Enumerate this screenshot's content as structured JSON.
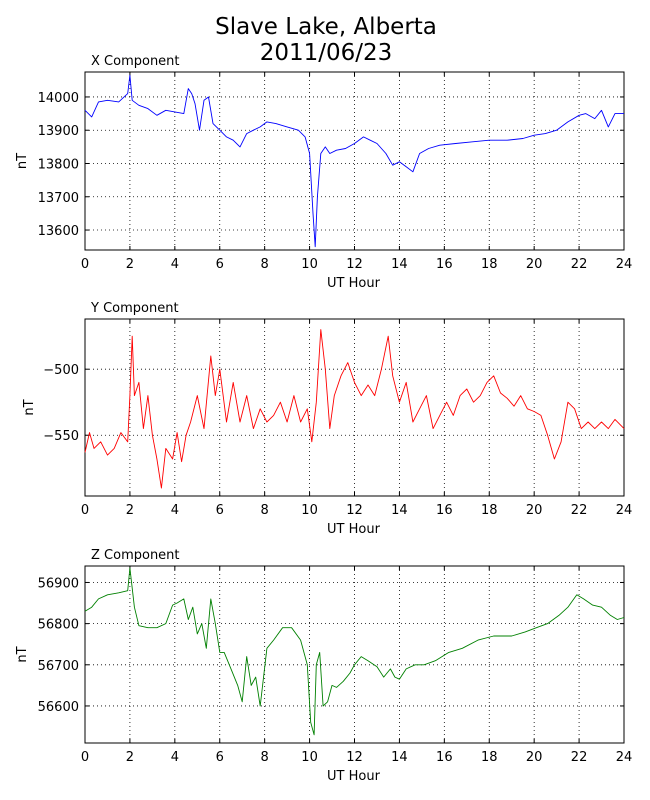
{
  "title_line1": "Slave Lake, Alberta",
  "title_line2": "2011/06/23",
  "chart_data": [
    {
      "type": "line",
      "subtitle": "X Component",
      "xlabel": "UT Hour",
      "ylabel": "nT",
      "color": "#0000ff",
      "xlim": [
        0,
        24
      ],
      "ylim": [
        13540,
        14075
      ],
      "xticks": [
        0,
        2,
        4,
        6,
        8,
        10,
        12,
        14,
        16,
        18,
        20,
        22,
        24
      ],
      "yticks": [
        13600,
        13700,
        13800,
        13900,
        14000
      ],
      "ytick_labels": [
        "13600",
        "13700",
        "13800",
        "13900",
        "14000"
      ],
      "grid": true,
      "series": [
        {
          "x": [
            0,
            0.3,
            0.6,
            1.0,
            1.5,
            1.9,
            2.0,
            2.1,
            2.4,
            2.8,
            3.2,
            3.6,
            4.0,
            4.4,
            4.6,
            4.75,
            4.9,
            5.1,
            5.3,
            5.5,
            5.7,
            6.0,
            6.3,
            6.6,
            6.9,
            7.2,
            7.5,
            7.8,
            8.1,
            8.5,
            9.0,
            9.5,
            9.8,
            10.0,
            10.15,
            10.25,
            10.35,
            10.5,
            10.7,
            10.9,
            11.2,
            11.6,
            12.0,
            12.4,
            12.7,
            13.0,
            13.4,
            13.7,
            14.0,
            14.3,
            14.6,
            14.9,
            15.3,
            15.8,
            16.5,
            17.2,
            18.0,
            18.8,
            19.5,
            20.0,
            20.5,
            21.0,
            21.5,
            22.0,
            22.3,
            22.7,
            23.0,
            23.3,
            23.6,
            24.0
          ],
          "y": [
            13960,
            13940,
            13985,
            13990,
            13985,
            14010,
            14065,
            13990,
            13975,
            13965,
            13945,
            13960,
            13955,
            13950,
            14025,
            14010,
            13980,
            13900,
            13990,
            14000,
            13920,
            13900,
            13880,
            13870,
            13850,
            13890,
            13900,
            13910,
            13925,
            13920,
            13910,
            13900,
            13880,
            13830,
            13650,
            13550,
            13700,
            13830,
            13850,
            13830,
            13840,
            13845,
            13860,
            13880,
            13870,
            13860,
            13830,
            13795,
            13805,
            13790,
            13775,
            13830,
            13845,
            13855,
            13860,
            13865,
            13870,
            13870,
            13875,
            13885,
            13890,
            13900,
            13925,
            13945,
            13950,
            13935,
            13960,
            13910,
            13950,
            13950
          ]
        }
      ]
    },
    {
      "type": "line",
      "subtitle": "Y Component",
      "xlabel": "UT Hour",
      "ylabel": "nT",
      "color": "#ff0000",
      "xlim": [
        0,
        24
      ],
      "ylim": [
        -596,
        -462
      ],
      "xticks": [
        0,
        2,
        4,
        6,
        8,
        10,
        12,
        14,
        16,
        18,
        20,
        22,
        24
      ],
      "yticks": [
        -550,
        -500
      ],
      "ytick_labels": [
        "−550",
        "−500"
      ],
      "grid": true,
      "series": [
        {
          "x": [
            0,
            0.2,
            0.4,
            0.7,
            1.0,
            1.3,
            1.6,
            1.9,
            2.0,
            2.1,
            2.2,
            2.4,
            2.6,
            2.8,
            3.0,
            3.2,
            3.4,
            3.6,
            3.9,
            4.1,
            4.3,
            4.5,
            4.7,
            5.0,
            5.3,
            5.6,
            5.8,
            6.0,
            6.3,
            6.6,
            6.9,
            7.2,
            7.5,
            7.8,
            8.1,
            8.4,
            8.7,
            9.0,
            9.3,
            9.6,
            9.9,
            10.1,
            10.3,
            10.5,
            10.7,
            10.9,
            11.1,
            11.4,
            11.7,
            12.0,
            12.3,
            12.6,
            12.9,
            13.2,
            13.5,
            13.7,
            14.0,
            14.3,
            14.6,
            14.9,
            15.2,
            15.5,
            15.8,
            16.1,
            16.4,
            16.7,
            17.0,
            17.3,
            17.6,
            17.9,
            18.2,
            18.5,
            18.8,
            19.1,
            19.4,
            19.7,
            20.0,
            20.3,
            20.6,
            20.9,
            21.2,
            21.5,
            21.8,
            22.1,
            22.4,
            22.7,
            23.0,
            23.3,
            23.6,
            24.0
          ],
          "y": [
            -563,
            -548,
            -560,
            -555,
            -565,
            -560,
            -548,
            -555,
            -520,
            -475,
            -520,
            -510,
            -545,
            -520,
            -550,
            -568,
            -590,
            -560,
            -568,
            -548,
            -570,
            -550,
            -540,
            -520,
            -545,
            -490,
            -520,
            -500,
            -540,
            -510,
            -540,
            -520,
            -545,
            -530,
            -540,
            -535,
            -525,
            -540,
            -520,
            -540,
            -530,
            -555,
            -525,
            -470,
            -500,
            -545,
            -520,
            -505,
            -495,
            -510,
            -520,
            -512,
            -520,
            -500,
            -475,
            -505,
            -525,
            -510,
            -540,
            -530,
            -520,
            -545,
            -535,
            -525,
            -535,
            -520,
            -515,
            -525,
            -520,
            -510,
            -505,
            -518,
            -522,
            -528,
            -520,
            -530,
            -532,
            -535,
            -550,
            -568,
            -555,
            -525,
            -530,
            -545,
            -540,
            -545,
            -540,
            -545,
            -538,
            -545
          ]
        }
      ]
    },
    {
      "type": "line",
      "subtitle": "Z Component",
      "xlabel": "UT Hour",
      "ylabel": "nT",
      "color": "#008000",
      "xlim": [
        0,
        24
      ],
      "ylim": [
        56510,
        56940
      ],
      "xticks": [
        0,
        2,
        4,
        6,
        8,
        10,
        12,
        14,
        16,
        18,
        20,
        22,
        24
      ],
      "yticks": [
        56600,
        56700,
        56800,
        56900
      ],
      "ytick_labels": [
        "56600",
        "56700",
        "56800",
        "56900"
      ],
      "grid": true,
      "series": [
        {
          "x": [
            0,
            0.3,
            0.6,
            1.0,
            1.5,
            1.9,
            2.0,
            2.2,
            2.4,
            2.8,
            3.2,
            3.6,
            3.9,
            4.1,
            4.4,
            4.6,
            4.8,
            5.0,
            5.2,
            5.4,
            5.6,
            5.8,
            6.0,
            6.2,
            6.5,
            6.8,
            7.0,
            7.2,
            7.4,
            7.6,
            7.8,
            8.1,
            8.4,
            8.8,
            9.2,
            9.6,
            9.9,
            10.05,
            10.2,
            10.3,
            10.45,
            10.6,
            10.8,
            11.0,
            11.2,
            11.5,
            11.8,
            12.0,
            12.3,
            12.6,
            13.0,
            13.3,
            13.6,
            13.8,
            14.0,
            14.3,
            14.7,
            15.1,
            15.6,
            16.2,
            16.8,
            17.5,
            18.2,
            19.0,
            19.6,
            20.1,
            20.6,
            21.1,
            21.5,
            21.9,
            22.2,
            22.6,
            23.0,
            23.4,
            23.7,
            24.0
          ],
          "y": [
            56830,
            56840,
            56860,
            56870,
            56875,
            56880,
            56935,
            56840,
            56795,
            56790,
            56790,
            56800,
            56845,
            56850,
            56860,
            56810,
            56840,
            56775,
            56800,
            56740,
            56860,
            56800,
            56730,
            56730,
            56690,
            56650,
            56610,
            56720,
            56650,
            56670,
            56600,
            56740,
            56760,
            56790,
            56790,
            56760,
            56700,
            56560,
            56530,
            56700,
            56730,
            56600,
            56610,
            56650,
            56645,
            56660,
            56680,
            56700,
            56720,
            56710,
            56695,
            56670,
            56690,
            56670,
            56665,
            56690,
            56700,
            56700,
            56710,
            56730,
            56740,
            56760,
            56770,
            56770,
            56780,
            56790,
            56800,
            56820,
            56840,
            56870,
            56860,
            56845,
            56840,
            56820,
            56810,
            56815
          ]
        }
      ]
    }
  ]
}
